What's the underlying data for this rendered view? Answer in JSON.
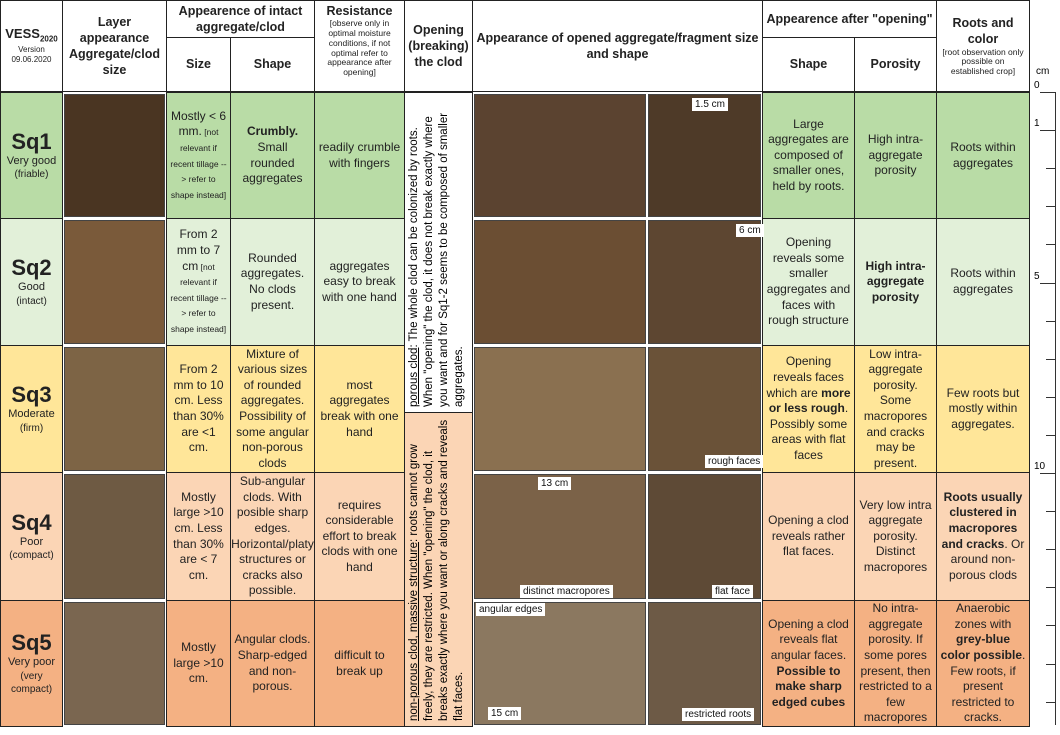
{
  "header": {
    "vess": "VESS",
    "vess_sub": "2020",
    "version": "Version",
    "date": "09.06.2020",
    "layer": "Layer appearance Aggregate/clod size",
    "intact": "Appearence of intact aggregate/clod",
    "size": "Size",
    "shape": "Shape",
    "resistance": "Resistance",
    "resistance_note": "[observe only in optimal moisture conditions, if not optimal refer to appearance after opening]",
    "opening": "Opening (breaking) the clod",
    "opened": "Appearance of opened aggregate/fragment size and shape",
    "after": "Appearence after \"opening\"",
    "after_shape": "Shape",
    "porosity": "Porosity",
    "roots": "Roots and color",
    "roots_note": "[root observation only possible on established crop]"
  },
  "rows": [
    {
      "score": "Sq1",
      "quality": "Very good",
      "note": "(friable)",
      "color": "#b9dca6",
      "size": [
        {
          "text": "Mostly < 6 mm."
        },
        {
          "text": " [not relevant if recent tillage --> refer to shape instead]",
          "small": true
        }
      ],
      "shape": [
        {
          "text": "Crumbly.",
          "bold": true
        },
        {
          "text": " Small rounded aggregates"
        }
      ],
      "resistance": [
        {
          "text": "readily crumble with fingers"
        }
      ],
      "after_shape": [
        {
          "text": "Large aggregates are composed of smaller ones, held by roots."
        }
      ],
      "porosity": [
        {
          "text": "High intra-aggregate porosity"
        }
      ],
      "roots": [
        {
          "text": "Roots within aggregates"
        }
      ],
      "captions": [
        "1.5 cm"
      ]
    },
    {
      "score": "Sq2",
      "quality": "Good",
      "note": "(intact)",
      "color": "#e2f0d9",
      "size": [
        {
          "text": "From 2 mm to 7 cm"
        },
        {
          "text": " [not relevant if recent tillage --> refer to shape instead]",
          "small": true
        }
      ],
      "shape": [
        {
          "text": "Rounded aggregates. No clods present."
        }
      ],
      "resistance": [
        {
          "text": "aggregates easy to break with one hand"
        }
      ],
      "after_shape": [
        {
          "text": "Opening reveals some smaller aggregates and faces with rough structure"
        }
      ],
      "porosity": [
        {
          "text": "High intra-aggregate porosity",
          "bold": true
        }
      ],
      "roots": [
        {
          "text": "Roots within aggregates"
        }
      ],
      "captions": [
        "6 cm"
      ]
    },
    {
      "score": "Sq3",
      "quality": "Moderate",
      "note": "(firm)",
      "color": "#ffe699",
      "size": [
        {
          "text": "From 2 mm to 10 cm. Less than 30% are <1 cm."
        }
      ],
      "shape": [
        {
          "text": "Mixture of various sizes of rounded aggregates. Possibility of some angular non-porous clods"
        }
      ],
      "resistance": [
        {
          "text": "most aggregates break with one hand"
        }
      ],
      "after_shape": [
        {
          "text": "Opening reveals faces which are "
        },
        {
          "text": "more or less rough",
          "bold": true
        },
        {
          "text": ". Possibly some areas with flat faces"
        }
      ],
      "porosity": [
        {
          "text": "Low intra-aggregate porosity. Some macropores and cracks may be present."
        }
      ],
      "roots": [
        {
          "text": "Few roots but mostly within aggregates."
        }
      ],
      "captions": [
        "rough faces"
      ]
    },
    {
      "score": "Sq4",
      "quality": "Poor",
      "note": "(compact)",
      "color": "#fbd5b5",
      "size": [
        {
          "text": "Mostly large >10 cm. Less than 30% are < 7 cm."
        }
      ],
      "shape": [
        {
          "text": "Sub-angular clods. With posible sharp edges. Horizontal/platy structures or cracks also possible."
        }
      ],
      "resistance": [
        {
          "text": "requires considerable effort to break clods with one hand"
        }
      ],
      "after_shape": [
        {
          "text": "Opening a clod reveals rather flat faces."
        }
      ],
      "porosity": [
        {
          "text": "Very low intra aggregate porosity. Distinct macropores"
        }
      ],
      "roots": [
        {
          "text": "Roots usually clustered in macropores and cracks",
          "bold": true
        },
        {
          "text": ". Or around non-porous clods"
        }
      ],
      "captions": [
        "13 cm",
        "distinct macropores",
        "flat face"
      ]
    },
    {
      "score": "Sq5",
      "quality": "Very poor",
      "note": "(very compact)",
      "color": "#f4b183",
      "size": [
        {
          "text": "Mostly large >10 cm."
        }
      ],
      "shape": [
        {
          "text": "Angular clods. Sharp-edged and non-porous."
        }
      ],
      "resistance": [
        {
          "text": "difficult to break up"
        }
      ],
      "after_shape": [
        {
          "text": "Opening a clod reveals flat angular faces. "
        },
        {
          "text": "Possible to make sharp edged cubes",
          "bold": true
        }
      ],
      "porosity": [
        {
          "text": "No intra-aggregate porosity. If some pores present, then restricted to a few macropores"
        }
      ],
      "roots": [
        {
          "text": "Anaerobic zones with "
        },
        {
          "text": "grey-blue color possible",
          "bold": true
        },
        {
          "text": ". Few roots, if present restricted to cracks."
        }
      ],
      "captions": [
        "angular edges",
        "15 cm",
        "restricted roots"
      ]
    }
  ],
  "opening": [
    {
      "lead": "porous clod",
      "text": ": The whole clod can be colonized by roots. When \"opening\" the clod, it does not break exactly where you want and for Sq1-2 seems to be composed of smaller aggregates."
    },
    {
      "lead": "non-porous clod, massive structure",
      "text": ": roots cannot grow freely, they are restricted. When \"opening\" the clod, it breaks exactly where you want or along cracks and reveals flat faces."
    }
  ],
  "ruler": {
    "unit": "cm",
    "marks": [
      0,
      1,
      5,
      10
    ]
  }
}
